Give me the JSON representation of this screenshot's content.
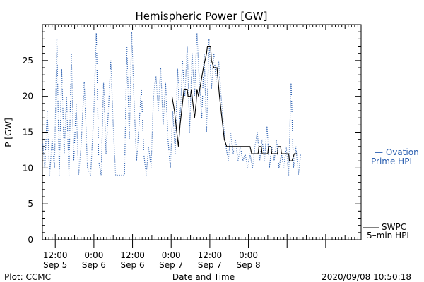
{
  "chart_data": {
    "type": "line",
    "title": "Hemispheric Power [GW]",
    "xlabel": "Date and Time",
    "ylabel": "P [GW]",
    "ylim": [
      0,
      30
    ],
    "xlim": [
      "2020-09-05T08:00",
      "2020-09-09T11:00"
    ],
    "y_ticks": [
      0,
      5,
      10,
      15,
      20,
      25
    ],
    "x_ticks": [
      {
        "t": "2020-09-05T12:00",
        "time": "12:00",
        "date": "Sep 5"
      },
      {
        "t": "2020-09-06T00:00",
        "time": "0:00",
        "date": "Sep 6"
      },
      {
        "t": "2020-09-06T12:00",
        "time": "12:00",
        "date": "Sep 6"
      },
      {
        "t": "2020-09-07T00:00",
        "time": "0:00",
        "date": "Sep 7"
      },
      {
        "t": "2020-09-07T12:00",
        "time": "12:00",
        "date": "Sep 7"
      },
      {
        "t": "2020-09-08T00:00",
        "time": "0:00",
        "date": "Sep 8"
      }
    ],
    "grid": false,
    "legend_position": "right",
    "series": [
      {
        "name": "Ovation Prime HPI",
        "legend_lines": [
          "— Ovation",
          "Prime HPI"
        ],
        "color": "#2b5fb0",
        "style": "dotted",
        "points": [
          [
            "2020-09-05T08:00",
            14
          ],
          [
            "2020-09-05T08:45",
            10
          ],
          [
            "2020-09-05T09:30",
            18
          ],
          [
            "2020-09-05T10:15",
            9
          ],
          [
            "2020-09-05T11:00",
            14
          ],
          [
            "2020-09-05T11:45",
            10
          ],
          [
            "2020-09-05T12:30",
            28
          ],
          [
            "2020-09-05T13:15",
            9
          ],
          [
            "2020-09-05T14:00",
            24
          ],
          [
            "2020-09-05T14:45",
            12
          ],
          [
            "2020-09-05T15:30",
            20
          ],
          [
            "2020-09-05T16:15",
            9
          ],
          [
            "2020-09-05T17:00",
            26
          ],
          [
            "2020-09-05T17:45",
            11
          ],
          [
            "2020-09-05T18:30",
            19
          ],
          [
            "2020-09-05T19:15",
            9
          ],
          [
            "2020-09-05T20:00",
            13
          ],
          [
            "2020-09-05T21:00",
            22
          ],
          [
            "2020-09-05T22:00",
            10
          ],
          [
            "2020-09-05T23:00",
            9
          ],
          [
            "2020-09-06T00:00",
            18
          ],
          [
            "2020-09-06T00:45",
            29
          ],
          [
            "2020-09-06T01:30",
            11
          ],
          [
            "2020-09-06T02:15",
            9
          ],
          [
            "2020-09-06T03:00",
            22
          ],
          [
            "2020-09-06T03:45",
            12
          ],
          [
            "2020-09-06T04:30",
            18
          ],
          [
            "2020-09-06T05:15",
            25
          ],
          [
            "2020-09-06T06:00",
            16
          ],
          [
            "2020-09-06T06:45",
            9
          ],
          [
            "2020-09-06T08:00",
            9
          ],
          [
            "2020-09-06T09:30",
            9
          ],
          [
            "2020-09-06T10:15",
            27
          ],
          [
            "2020-09-06T11:00",
            14
          ],
          [
            "2020-09-06T11:45",
            29
          ],
          [
            "2020-09-06T12:30",
            19
          ],
          [
            "2020-09-06T13:15",
            11
          ],
          [
            "2020-09-06T14:00",
            16
          ],
          [
            "2020-09-06T14:45",
            21
          ],
          [
            "2020-09-06T15:30",
            12
          ],
          [
            "2020-09-06T16:15",
            9
          ],
          [
            "2020-09-06T17:00",
            13
          ],
          [
            "2020-09-06T17:45",
            10
          ],
          [
            "2020-09-06T18:30",
            20
          ],
          [
            "2020-09-06T19:15",
            23
          ],
          [
            "2020-09-06T20:00",
            18
          ],
          [
            "2020-09-06T20:45",
            24
          ],
          [
            "2020-09-06T21:30",
            16
          ],
          [
            "2020-09-06T22:15",
            22
          ],
          [
            "2020-09-06T23:00",
            14
          ],
          [
            "2020-09-06T23:45",
            10
          ],
          [
            "2020-09-07T00:30",
            18
          ],
          [
            "2020-09-07T01:15",
            12
          ],
          [
            "2020-09-07T02:00",
            24
          ],
          [
            "2020-09-07T02:45",
            16
          ],
          [
            "2020-09-07T03:30",
            25
          ],
          [
            "2020-09-07T04:15",
            20
          ],
          [
            "2020-09-07T05:00",
            27
          ],
          [
            "2020-09-07T05:45",
            15
          ],
          [
            "2020-09-07T06:30",
            26
          ],
          [
            "2020-09-07T07:15",
            20
          ],
          [
            "2020-09-07T08:00",
            29
          ],
          [
            "2020-09-07T08:45",
            22
          ],
          [
            "2020-09-07T09:30",
            17
          ],
          [
            "2020-09-07T10:15",
            26
          ],
          [
            "2020-09-07T11:00",
            15
          ],
          [
            "2020-09-07T11:45",
            28
          ],
          [
            "2020-09-07T12:30",
            21
          ],
          [
            "2020-09-07T13:15",
            26
          ],
          [
            "2020-09-07T14:00",
            22
          ],
          [
            "2020-09-07T14:45",
            25
          ],
          [
            "2020-09-07T15:30",
            20
          ],
          [
            "2020-09-07T16:15",
            16
          ],
          [
            "2020-09-07T17:00",
            13
          ],
          [
            "2020-09-07T17:45",
            11
          ],
          [
            "2020-09-07T18:30",
            15
          ],
          [
            "2020-09-07T19:15",
            12
          ],
          [
            "2020-09-07T20:00",
            14
          ],
          [
            "2020-09-07T20:45",
            11
          ],
          [
            "2020-09-07T21:30",
            13
          ],
          [
            "2020-09-07T22:15",
            11
          ],
          [
            "2020-09-07T23:00",
            12
          ],
          [
            "2020-09-07T23:45",
            10
          ],
          [
            "2020-09-08T00:30",
            12
          ],
          [
            "2020-09-08T01:15",
            10
          ],
          [
            "2020-09-08T02:00",
            13
          ],
          [
            "2020-09-08T02:45",
            15
          ],
          [
            "2020-09-08T03:30",
            11
          ],
          [
            "2020-09-08T04:15",
            14
          ],
          [
            "2020-09-08T05:00",
            11
          ],
          [
            "2020-09-08T05:45",
            16
          ],
          [
            "2020-09-08T06:30",
            10
          ],
          [
            "2020-09-08T07:15",
            13
          ],
          [
            "2020-09-08T08:00",
            11
          ],
          [
            "2020-09-08T08:45",
            14
          ],
          [
            "2020-09-08T09:30",
            10
          ],
          [
            "2020-09-08T10:15",
            12
          ],
          [
            "2020-09-08T11:00",
            10
          ],
          [
            "2020-09-08T11:45",
            13
          ],
          [
            "2020-09-08T12:30",
            9
          ],
          [
            "2020-09-08T13:15",
            22
          ],
          [
            "2020-09-08T14:00",
            10
          ],
          [
            "2020-09-08T14:45",
            13
          ],
          [
            "2020-09-08T15:30",
            9
          ],
          [
            "2020-09-08T16:15",
            12
          ]
        ]
      },
      {
        "name": "SWPC 5-min HPI",
        "legend_lines": [
          "SWPC",
          "5–min HPI"
        ],
        "color": "#000000",
        "style": "solid",
        "points": [
          [
            "2020-09-07T00:15",
            20
          ],
          [
            "2020-09-07T01:00",
            18
          ],
          [
            "2020-09-07T01:45",
            15
          ],
          [
            "2020-09-07T02:15",
            13
          ],
          [
            "2020-09-07T02:45",
            16
          ],
          [
            "2020-09-07T03:30",
            19
          ],
          [
            "2020-09-07T04:00",
            21
          ],
          [
            "2020-09-07T05:00",
            21
          ],
          [
            "2020-09-07T05:15",
            20
          ],
          [
            "2020-09-07T06:00",
            20
          ],
          [
            "2020-09-07T06:15",
            21
          ],
          [
            "2020-09-07T06:45",
            19
          ],
          [
            "2020-09-07T07:15",
            17
          ],
          [
            "2020-09-07T07:45",
            19
          ],
          [
            "2020-09-07T08:00",
            21
          ],
          [
            "2020-09-07T08:30",
            20
          ],
          [
            "2020-09-07T09:15",
            22
          ],
          [
            "2020-09-07T10:00",
            24
          ],
          [
            "2020-09-07T10:30",
            25
          ],
          [
            "2020-09-07T11:00",
            26
          ],
          [
            "2020-09-07T11:15",
            27
          ],
          [
            "2020-09-07T12:15",
            27
          ],
          [
            "2020-09-07T12:30",
            25
          ],
          [
            "2020-09-07T13:15",
            24
          ],
          [
            "2020-09-07T14:15",
            24
          ],
          [
            "2020-09-07T15:00",
            20
          ],
          [
            "2020-09-07T15:45",
            17
          ],
          [
            "2020-09-07T16:30",
            14
          ],
          [
            "2020-09-07T17:15",
            13
          ],
          [
            "2020-09-07T23:00",
            13
          ],
          [
            "2020-09-08T00:30",
            13
          ],
          [
            "2020-09-08T01:00",
            12
          ],
          [
            "2020-09-08T03:00",
            12
          ],
          [
            "2020-09-08T03:15",
            13
          ],
          [
            "2020-09-08T04:00",
            13
          ],
          [
            "2020-09-08T04:15",
            12
          ],
          [
            "2020-09-08T06:00",
            12
          ],
          [
            "2020-09-08T06:15",
            13
          ],
          [
            "2020-09-08T07:00",
            13
          ],
          [
            "2020-09-08T07:15",
            12
          ],
          [
            "2020-09-08T09:00",
            12
          ],
          [
            "2020-09-08T09:15",
            13
          ],
          [
            "2020-09-08T10:00",
            13
          ],
          [
            "2020-09-08T10:15",
            12
          ],
          [
            "2020-09-08T12:30",
            12
          ],
          [
            "2020-09-08T12:45",
            11
          ],
          [
            "2020-09-08T13:30",
            11
          ],
          [
            "2020-09-08T14:15",
            12
          ],
          [
            "2020-09-08T15:00",
            12
          ]
        ]
      }
    ]
  },
  "footer": {
    "plot_source": "Plot: CCMC",
    "timestamp": "2020/09/08 10:50:18"
  }
}
